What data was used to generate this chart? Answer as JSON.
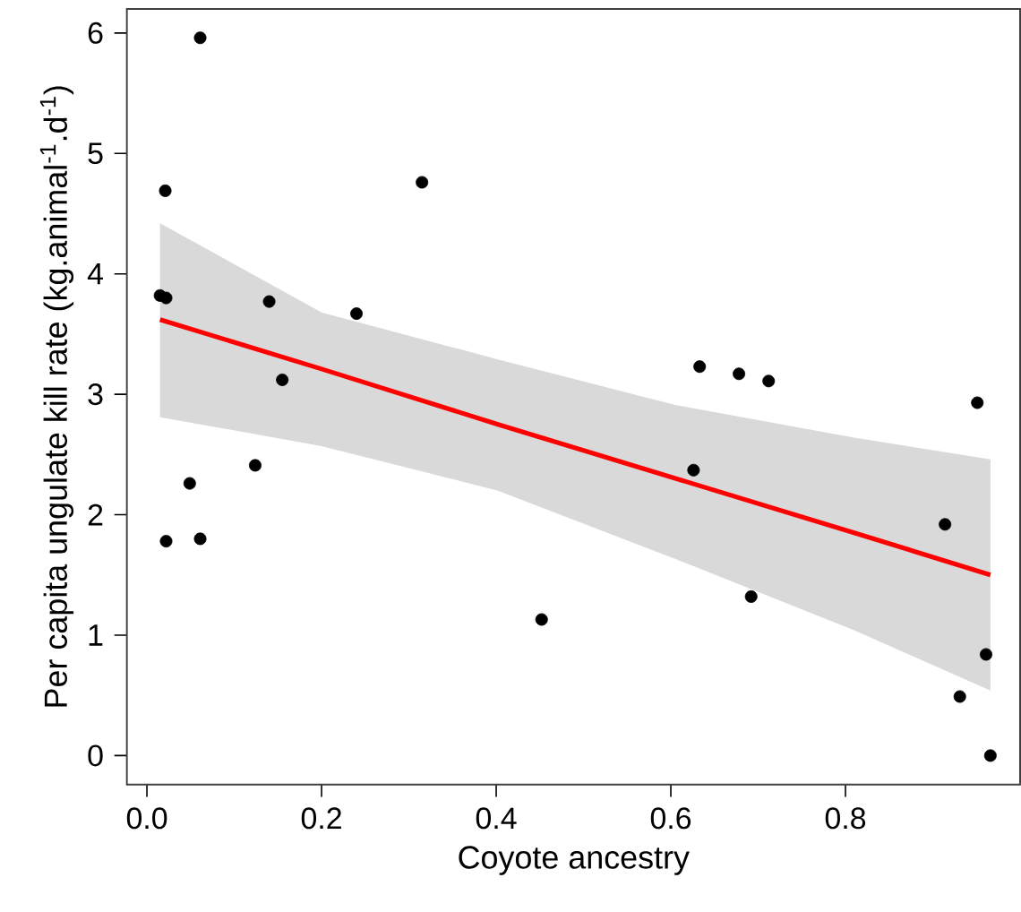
{
  "chart_data": {
    "type": "scatter",
    "xlabel": "Coyote ancestry",
    "ylabel": "Per capita ungulate kill rate (kg.animal$^{-1}$.d$^{-1}$)",
    "xlim": [
      -0.023,
      1.0
    ],
    "ylim": [
      -0.24,
      6.2
    ],
    "xticks": [
      {
        "value": 0,
        "label": "0.0"
      },
      0.2,
      0.4,
      0.6,
      0.8
    ],
    "yticks": [
      0,
      1,
      2,
      3,
      4,
      5,
      6
    ],
    "grid": false,
    "series": [
      {
        "color": "#000000",
        "x": [
          0.061,
          0.021,
          0.015,
          0.022,
          0.14,
          0.24,
          0.155,
          0.315,
          0.124,
          0.049,
          0.061,
          0.022,
          0.452,
          0.633,
          0.678,
          0.712,
          0.626,
          0.692,
          0.951,
          0.914,
          0.961,
          0.931,
          0.966
        ],
        "values": [
          5.96,
          4.69,
          3.82,
          3.8,
          3.77,
          3.67,
          3.12,
          4.76,
          2.41,
          2.26,
          1.8,
          1.78,
          1.13,
          3.23,
          3.17,
          3.11,
          2.37,
          1.32,
          2.93,
          1.92,
          0.84,
          0.49,
          0.0
        ]
      },
      {
        "type": "line",
        "color": "#ff0000",
        "line_style": "solid",
        "x": [
          0.015,
          0.2,
          0.402,
          0.606,
          0.81,
          0.966
        ],
        "values": [
          3.62,
          3.21,
          2.75,
          2.3,
          1.85,
          1.5
        ],
        "lower": [
          2.81,
          2.57,
          2.2,
          1.63,
          1.04,
          0.54
        ],
        "upper": [
          4.42,
          3.68,
          3.29,
          2.91,
          2.64,
          2.46
        ]
      }
    ]
  }
}
